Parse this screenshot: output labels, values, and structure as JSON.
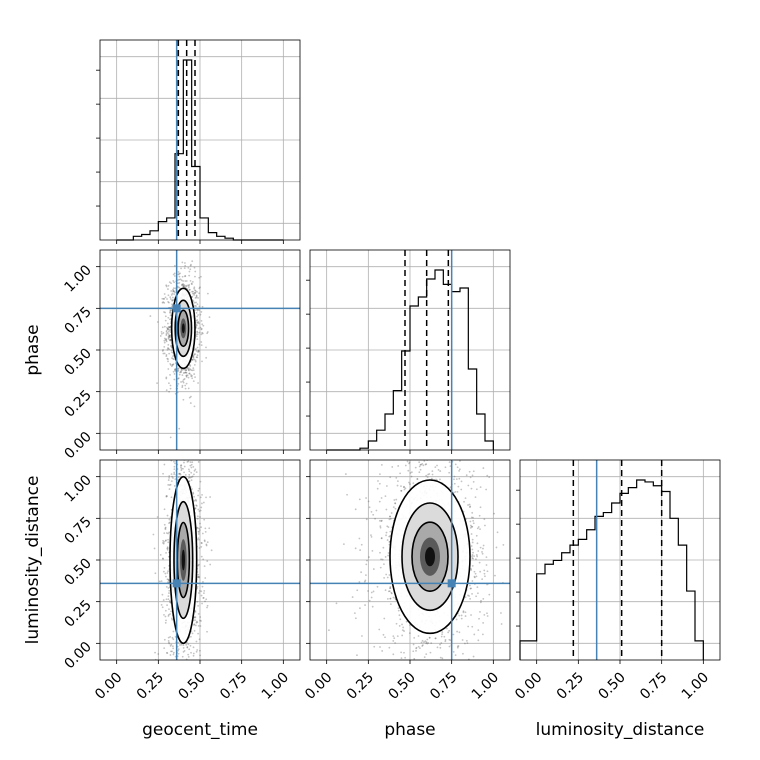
{
  "chart_data": {
    "type": "corner",
    "parameters": [
      "geocent_time",
      "phase",
      "luminosity_distance"
    ],
    "axis_labels": {
      "x": [
        "geocent_time",
        "phase",
        "luminosity_distance"
      ],
      "y": [
        "phase",
        "luminosity_distance"
      ]
    },
    "tick_values": [
      "0.00",
      "0.25",
      "0.50",
      "0.75",
      "1.00"
    ],
    "xlim": [
      -0.1,
      1.1
    ],
    "ylim": [
      -0.1,
      1.1
    ],
    "grid": true,
    "truths": {
      "geocent_time": 0.36,
      "phase": 0.75,
      "luminosity_distance": 0.36
    },
    "truth_color": "#4682b4",
    "quantiles": {
      "geocent_time": [
        0.37,
        0.42,
        0.47
      ],
      "phase": [
        0.47,
        0.6,
        0.73
      ],
      "luminosity_distance": [
        0.22,
        0.51,
        0.75
      ]
    },
    "histograms": {
      "geocent_time": {
        "edges": [
          0.0,
          0.05,
          0.1,
          0.15,
          0.2,
          0.25,
          0.3,
          0.35,
          0.4,
          0.45,
          0.5,
          0.55,
          0.6,
          0.65,
          0.7,
          0.75,
          0.8,
          0.85,
          0.9,
          0.95,
          1.0
        ],
        "values": [
          0,
          0,
          0.02,
          0.03,
          0.05,
          0.1,
          0.12,
          0.47,
          0.98,
          0.4,
          0.12,
          0.04,
          0.02,
          0.01,
          0,
          0,
          0,
          0,
          0,
          0
        ]
      },
      "phase": {
        "edges": [
          0.0,
          0.05,
          0.1,
          0.15,
          0.2,
          0.25,
          0.3,
          0.35,
          0.4,
          0.45,
          0.5,
          0.55,
          0.6,
          0.65,
          0.7,
          0.75,
          0.8,
          0.85,
          0.9,
          0.95,
          1.0
        ],
        "values": [
          0,
          0,
          0,
          0,
          0.01,
          0.05,
          0.11,
          0.2,
          0.33,
          0.55,
          0.8,
          0.85,
          0.95,
          1.0,
          0.92,
          0.88,
          0.9,
          0.45,
          0.2,
          0.05
        ]
      },
      "luminosity_distance": {
        "edges": [
          -0.1,
          0.0,
          0.05,
          0.1,
          0.15,
          0.2,
          0.25,
          0.3,
          0.35,
          0.4,
          0.45,
          0.5,
          0.55,
          0.6,
          0.65,
          0.7,
          0.75,
          0.8,
          0.85,
          0.9,
          0.95,
          1.0
        ],
        "values": [
          0.1,
          0.45,
          0.5,
          0.52,
          0.56,
          0.6,
          0.63,
          0.68,
          0.75,
          0.77,
          0.82,
          0.87,
          0.9,
          0.94,
          0.93,
          0.91,
          0.88,
          0.74,
          0.6,
          0.36,
          0.1
        ]
      }
    },
    "density_2d": [
      {
        "x_param": "geocent_time",
        "y_param": "phase",
        "center": [
          0.4,
          0.63
        ],
        "sigma": [
          0.035,
          0.12
        ]
      },
      {
        "x_param": "geocent_time",
        "y_param": "luminosity_distance",
        "center": [
          0.4,
          0.5
        ],
        "sigma": [
          0.04,
          0.25
        ]
      },
      {
        "x_param": "phase",
        "y_param": "luminosity_distance",
        "center": [
          0.62,
          0.52
        ],
        "sigma": [
          0.12,
          0.23
        ]
      }
    ]
  }
}
